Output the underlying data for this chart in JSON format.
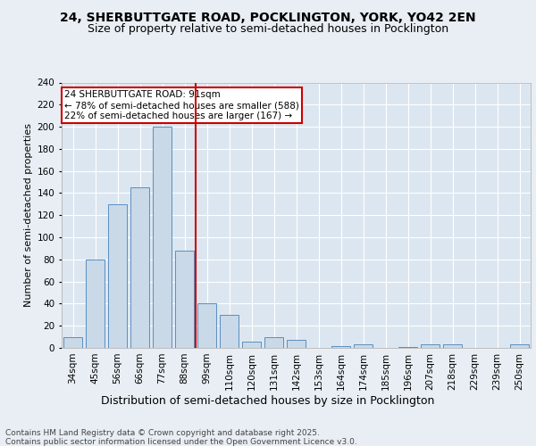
{
  "title1": "24, SHERBUTTGATE ROAD, POCKLINGTON, YORK, YO42 2EN",
  "title2": "Size of property relative to semi-detached houses in Pocklington",
  "xlabel": "Distribution of semi-detached houses by size in Pocklington",
  "ylabel": "Number of semi-detached properties",
  "categories": [
    "34sqm",
    "45sqm",
    "56sqm",
    "66sqm",
    "77sqm",
    "88sqm",
    "99sqm",
    "110sqm",
    "120sqm",
    "131sqm",
    "142sqm",
    "153sqm",
    "164sqm",
    "174sqm",
    "185sqm",
    "196sqm",
    "207sqm",
    "218sqm",
    "229sqm",
    "239sqm",
    "250sqm"
  ],
  "values": [
    10,
    80,
    130,
    145,
    200,
    88,
    40,
    30,
    6,
    10,
    7,
    0,
    2,
    3,
    0,
    1,
    3,
    3,
    0,
    0,
    3
  ],
  "bar_color": "#c9d9e8",
  "bar_edge_color": "#5a8fc0",
  "property_label": "24 SHERBUTTGATE ROAD: 91sqm",
  "pct_smaller": 78,
  "count_smaller": 588,
  "pct_larger": 22,
  "count_larger": 167,
  "vline_color": "#cc0000",
  "annotation_box_color": "#cc0000",
  "bg_color": "#e8eef4",
  "plot_bg_color": "#dce6f0",
  "ylim": [
    0,
    240
  ],
  "yticks": [
    0,
    20,
    40,
    60,
    80,
    100,
    120,
    140,
    160,
    180,
    200,
    220,
    240
  ],
  "vline_x": 5.5,
  "footer": "Contains HM Land Registry data © Crown copyright and database right 2025.\nContains public sector information licensed under the Open Government Licence v3.0.",
  "title1_fontsize": 10,
  "title2_fontsize": 9,
  "xlabel_fontsize": 9,
  "ylabel_fontsize": 8,
  "tick_fontsize": 7.5,
  "annotation_fontsize": 7.5,
  "footer_fontsize": 6.5
}
